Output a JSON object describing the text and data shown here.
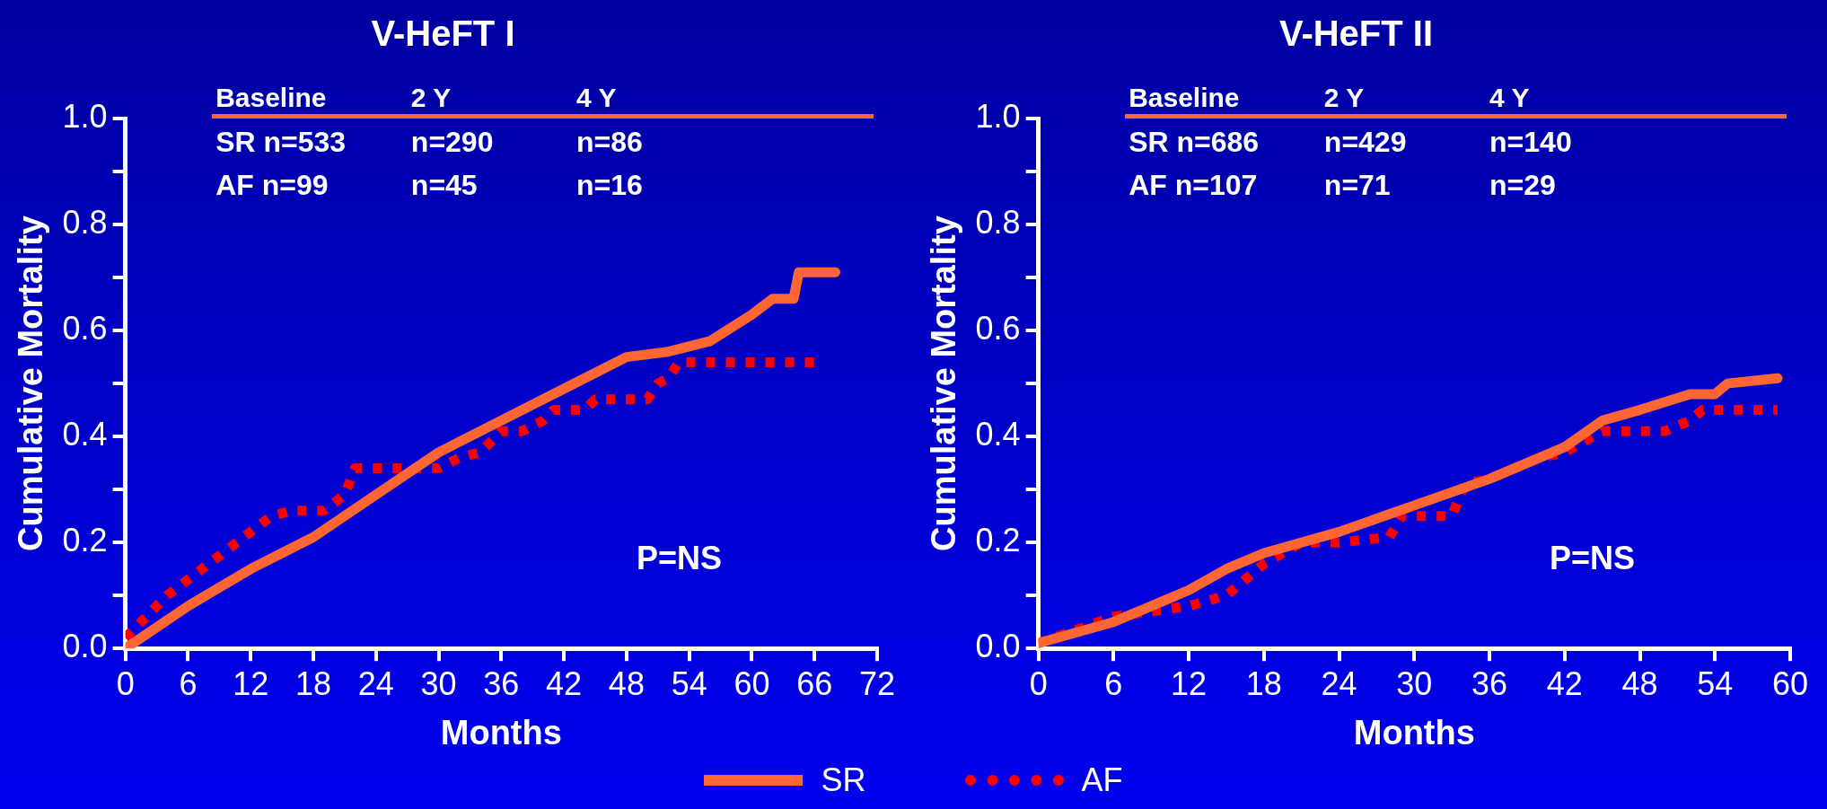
{
  "chart_data": [
    {
      "type": "line",
      "title": "V-HeFT I",
      "xlabel": "Months",
      "ylabel": "Cumulative Mortality",
      "xlim": [
        0,
        72
      ],
      "xticks": [
        0,
        6,
        12,
        18,
        24,
        30,
        36,
        42,
        48,
        54,
        60,
        66,
        72
      ],
      "ylim": [
        0,
        1
      ],
      "yticks": [
        {
          "value": 0,
          "label": "0.0"
        },
        {
          "value": 0.1,
          "label": null
        },
        0.2,
        {
          "value": 0.3,
          "label": null
        },
        0.4,
        {
          "value": 0.5,
          "label": null
        },
        0.6,
        {
          "value": 0.7,
          "label": null
        },
        0.8,
        {
          "value": 0.9,
          "label": null
        },
        {
          "value": 1,
          "label": "1.0"
        }
      ],
      "legend": "bottom",
      "marker": "none",
      "annotations": [
        "Baseline",
        "2 Y",
        "4 Y",
        "SR n=533",
        "n=290",
        "n=86",
        "AF n=99",
        "n=45",
        "n=16",
        "P=NS"
      ],
      "series": [
        {
          "name": "SR",
          "color": "#ff6633",
          "line_style": "solid",
          "x": [
            0,
            6,
            12,
            18,
            24,
            30,
            36,
            42,
            48,
            52,
            56,
            60,
            62,
            64,
            64.5,
            68
          ],
          "values": [
            0,
            0.08,
            0.15,
            0.21,
            0.29,
            0.37,
            0.43,
            0.49,
            0.55,
            0.56,
            0.58,
            0.63,
            0.66,
            0.66,
            0.71,
            0.71
          ]
        },
        {
          "name": "AF",
          "color": "#ff0000",
          "line_style": "dotted",
          "x": [
            0,
            4,
            8,
            12,
            14,
            16,
            19,
            21,
            22,
            30,
            32,
            34,
            36,
            38,
            40,
            41,
            44,
            45,
            50,
            51,
            52,
            53,
            66
          ],
          "values": [
            0.02,
            0.1,
            0.16,
            0.22,
            0.25,
            0.26,
            0.26,
            0.29,
            0.34,
            0.34,
            0.36,
            0.37,
            0.41,
            0.41,
            0.43,
            0.45,
            0.45,
            0.47,
            0.47,
            0.5,
            0.51,
            0.54,
            0.54
          ]
        }
      ]
    },
    {
      "type": "line",
      "title": "V-HeFT II",
      "xlabel": "Months",
      "ylabel": "Cumulative Mortality",
      "xlim": [
        0,
        60
      ],
      "xticks": [
        0,
        6,
        12,
        18,
        24,
        30,
        36,
        42,
        48,
        54,
        60
      ],
      "ylim": [
        0,
        1
      ],
      "yticks": [
        {
          "value": 0,
          "label": "0.0"
        },
        {
          "value": 0.1,
          "label": null
        },
        0.2,
        {
          "value": 0.3,
          "label": null
        },
        0.4,
        {
          "value": 0.5,
          "label": null
        },
        0.6,
        {
          "value": 0.7,
          "label": null
        },
        0.8,
        {
          "value": 0.9,
          "label": null
        },
        {
          "value": 1,
          "label": "1.0"
        }
      ],
      "marker": "none",
      "annotations": [
        "Baseline",
        "2 Y",
        "4 Y",
        "SR n=686",
        "n=429",
        "n=140",
        "AF n=107",
        "n=71",
        "n=29",
        "P=NS"
      ],
      "series": [
        {
          "color": "#ff6633",
          "line_style": "solid",
          "x": [
            0,
            6,
            10,
            12,
            15,
            18,
            24,
            30,
            36,
            39,
            42,
            45,
            48,
            52,
            54,
            55,
            59
          ],
          "values": [
            0.01,
            0.05,
            0.09,
            0.11,
            0.15,
            0.18,
            0.22,
            0.27,
            0.32,
            0.35,
            0.38,
            0.43,
            0.45,
            0.48,
            0.48,
            0.5,
            0.51
          ]
        },
        {
          "color": "#ff0000",
          "line_style": "dotted",
          "x": [
            0,
            6,
            12,
            15,
            18,
            21,
            24,
            28,
            29,
            33,
            34,
            36,
            40,
            42,
            45,
            50,
            52,
            53,
            59
          ],
          "values": [
            0.01,
            0.06,
            0.08,
            0.1,
            0.16,
            0.2,
            0.2,
            0.21,
            0.25,
            0.25,
            0.31,
            0.32,
            0.36,
            0.37,
            0.41,
            0.41,
            0.43,
            0.45,
            0.45
          ]
        }
      ]
    }
  ]
}
